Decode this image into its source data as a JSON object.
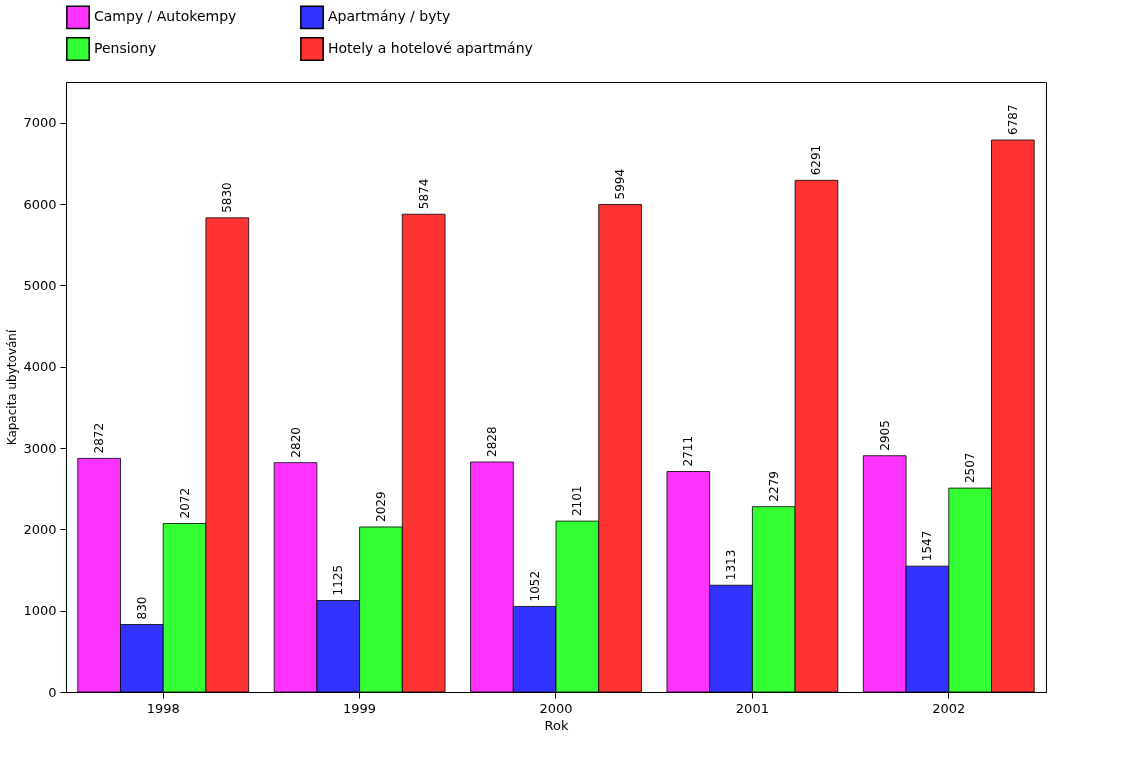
{
  "chart_data": {
    "type": "bar",
    "xlabel": "Rok",
    "ylabel": "Kapacita ubytování",
    "categories": [
      "1998",
      "1999",
      "2000",
      "2001",
      "2002"
    ],
    "series": [
      {
        "name": "Campy / Autokempy",
        "color": "#ff33ff",
        "values": [
          2872,
          2820,
          2828,
          2711,
          2905
        ]
      },
      {
        "name": "Apartmány / byty",
        "color": "#3333ff",
        "values": [
          830,
          1125,
          1052,
          1313,
          1547
        ]
      },
      {
        "name": "Pensiony",
        "color": "#33ff33",
        "values": [
          2072,
          2029,
          2101,
          2279,
          2507
        ]
      },
      {
        "name": "Hotely a hotelové apartmány",
        "color": "#ff3333",
        "values": [
          5830,
          5874,
          5994,
          6291,
          6787
        ]
      }
    ],
    "ylim": [
      0,
      7500
    ],
    "yticks": [
      0,
      1000,
      2000,
      3000,
      4000,
      5000,
      6000,
      7000
    ],
    "data_labels": true,
    "legend": "top",
    "grid": false
  }
}
